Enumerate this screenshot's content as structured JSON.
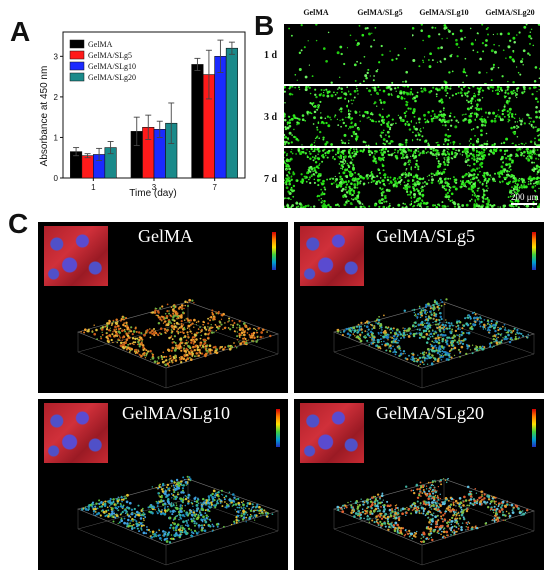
{
  "figure": {
    "panel_labels": {
      "a": "A",
      "b": "B",
      "c": "C"
    }
  },
  "chart_data": {
    "type": "bar",
    "categories": [
      "1",
      "3",
      "7"
    ],
    "xlabel": "Time (day)",
    "ylabel": "Absorbance at 450 nm",
    "ylim": [
      0,
      3.6
    ],
    "yticks": [
      0,
      1,
      2,
      3
    ],
    "series": [
      {
        "name": "GelMA",
        "color": "#000000",
        "values": [
          0.65,
          1.15,
          2.8
        ],
        "errors": [
          0.1,
          0.35,
          0.15
        ]
      },
      {
        "name": "GelMA/SLg5",
        "color": "#ff1a1a",
        "values": [
          0.55,
          1.25,
          2.55
        ],
        "errors": [
          0.05,
          0.3,
          0.6
        ]
      },
      {
        "name": "GelMA/SLg10",
        "color": "#1a2aff",
        "values": [
          0.58,
          1.2,
          3.0
        ],
        "errors": [
          0.15,
          0.2,
          0.4
        ]
      },
      {
        "name": "GelMA/SLg20",
        "color": "#1a8a8a",
        "values": [
          0.75,
          1.35,
          3.2
        ],
        "errors": [
          0.15,
          0.5,
          0.15
        ]
      }
    ],
    "legend_position": "top-left"
  },
  "panel_b": {
    "columns": [
      "GelMA",
      "GelMA/SLg5",
      "GelMA/SLg10",
      "GelMA/SLg20"
    ],
    "rows": [
      "1 d",
      "3 d",
      "7 d"
    ],
    "scale_bar": "200 μm"
  },
  "panel_c": {
    "titles": [
      "GelMA",
      "GelMA/SLg5",
      "GelMA/SLg10",
      "GelMA/SLg20"
    ]
  }
}
